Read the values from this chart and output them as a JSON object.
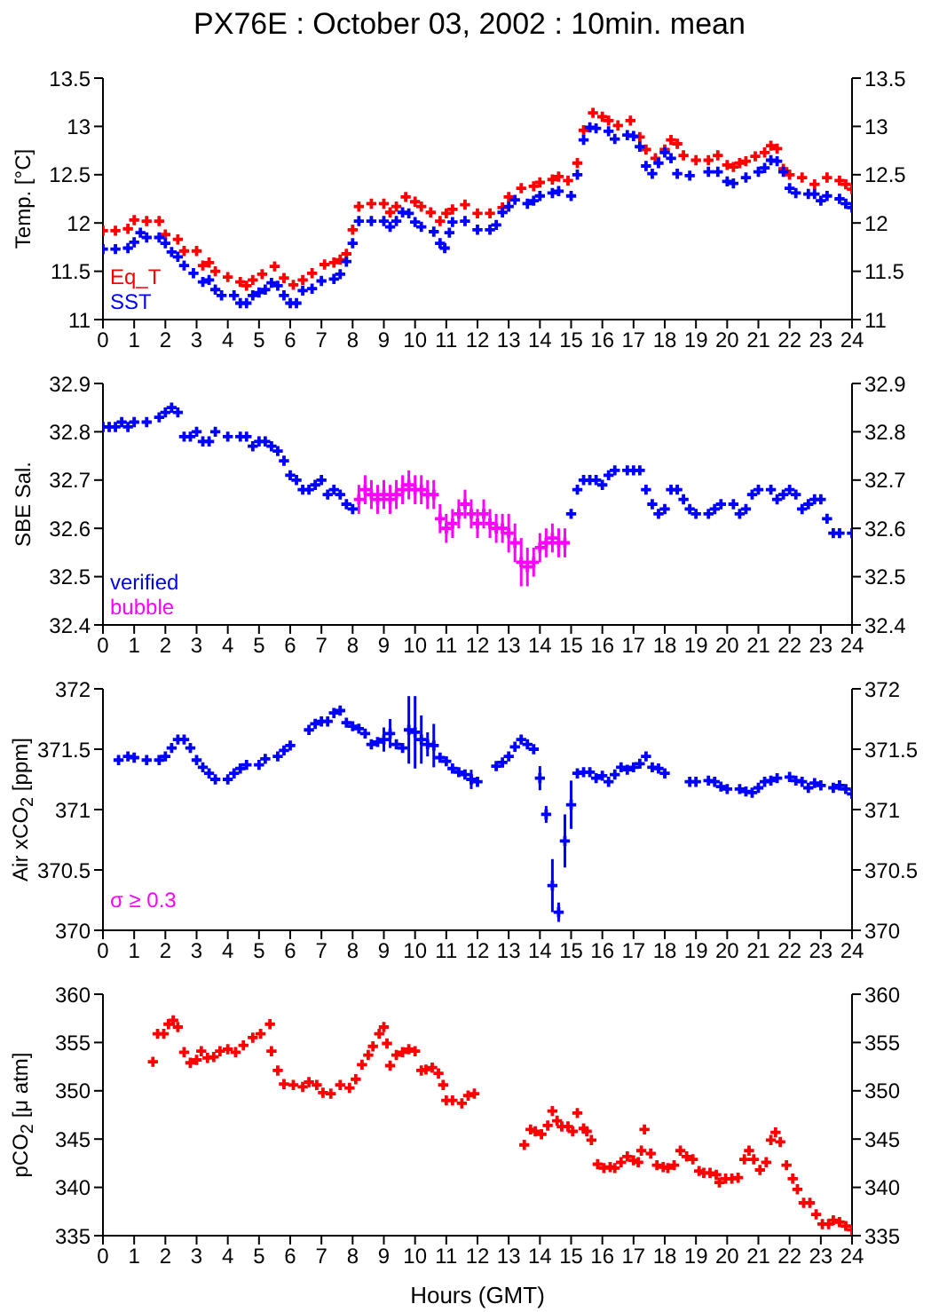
{
  "chart_data": [
    {
      "type": "scatter",
      "title": "PX76E : October 03, 2002 : 10min. mean",
      "ylabel": "Temp. [°C]",
      "marker": "cross",
      "legend": "bottom left",
      "xlim": [
        0,
        24
      ],
      "xticks": [
        0,
        1,
        2,
        3,
        4,
        5,
        6,
        7,
        8,
        9,
        10,
        11,
        12,
        13,
        14,
        15,
        16,
        17,
        18,
        19,
        20,
        21,
        22,
        23,
        24
      ],
      "ylim": [
        11,
        13.5
      ],
      "yticks": [
        11,
        11.5,
        12,
        12.5,
        13,
        13.5
      ],
      "y2lim": [
        11,
        13.5
      ],
      "y2ticks": [
        11,
        11.5,
        12,
        12.5,
        13,
        13.5
      ],
      "series": [
        {
          "name": "Eq_T",
          "color": "#ff0000",
          "x": [
            0,
            0.4,
            0.8,
            1.0,
            1.4,
            1.8,
            2.0,
            2.4,
            2.6,
            3.0,
            3.2,
            3.4,
            3.6,
            4.0,
            4.4,
            4.6,
            4.8,
            5.1,
            5.5,
            5.8,
            6.1,
            6.4,
            6.7,
            7.1,
            7.4,
            7.6,
            7.8,
            8.0,
            8.2,
            8.6,
            9.0,
            9.2,
            9.4,
            9.7,
            10.0,
            10.2,
            10.5,
            10.8,
            11.0,
            11.2,
            11.6,
            12.0,
            12.4,
            12.8,
            13.0,
            13.4,
            13.8,
            14.0,
            14.4,
            14.6,
            14.9,
            15.2,
            15.4,
            15.7,
            16.0,
            16.2,
            16.5,
            16.9,
            17.2,
            17.4,
            17.7,
            18.0,
            18.2,
            18.4,
            18.6,
            19.0,
            19.4,
            19.7,
            20.0,
            20.2,
            20.4,
            20.6,
            20.9,
            21.2,
            21.4,
            21.6,
            21.8,
            22.0,
            22.4,
            22.8,
            23.2,
            23.6,
            23.8,
            24.0
          ],
          "values": [
            11.92,
            11.92,
            11.94,
            12.03,
            12.02,
            12.02,
            11.88,
            11.83,
            11.71,
            11.71,
            11.56,
            11.59,
            11.5,
            11.44,
            11.39,
            11.35,
            11.41,
            11.47,
            11.55,
            11.43,
            11.36,
            11.41,
            11.48,
            11.57,
            11.59,
            11.62,
            11.68,
            11.93,
            12.17,
            12.2,
            12.2,
            12.11,
            12.17,
            12.27,
            12.22,
            12.17,
            12.11,
            12.02,
            12.1,
            12.14,
            12.19,
            12.1,
            12.1,
            12.16,
            12.27,
            12.36,
            12.38,
            12.42,
            12.45,
            12.48,
            12.44,
            12.62,
            12.96,
            13.14,
            13.1,
            13.06,
            13.01,
            13.06,
            12.89,
            12.76,
            12.67,
            12.76,
            12.86,
            12.82,
            12.7,
            12.65,
            12.65,
            12.7,
            12.6,
            12.58,
            12.62,
            12.64,
            12.69,
            12.73,
            12.8,
            12.77,
            12.56,
            12.5,
            12.47,
            12.4,
            12.47,
            12.44,
            12.4,
            12.35
          ]
        },
        {
          "name": "SST",
          "color": "#0000ff",
          "x": [
            0,
            0.4,
            0.8,
            1.0,
            1.2,
            1.4,
            1.8,
            2.0,
            2.2,
            2.4,
            2.6,
            2.9,
            3.2,
            3.4,
            3.6,
            3.8,
            4.2,
            4.4,
            4.6,
            4.8,
            5.0,
            5.2,
            5.4,
            5.6,
            5.8,
            6.0,
            6.2,
            6.4,
            6.7,
            7.0,
            7.4,
            7.6,
            7.8,
            8.0,
            8.2,
            8.6,
            9.0,
            9.2,
            9.4,
            9.6,
            9.8,
            10.0,
            10.2,
            10.6,
            10.8,
            10.95,
            11.1,
            11.2,
            11.6,
            12.0,
            12.4,
            12.6,
            12.8,
            13.0,
            13.2,
            13.6,
            13.8,
            14.0,
            14.4,
            14.6,
            15.0,
            15.2,
            15.4,
            15.6,
            15.8,
            16.2,
            16.4,
            16.8,
            17.0,
            17.2,
            17.4,
            17.6,
            17.8,
            18.0,
            18.2,
            18.4,
            18.8,
            19.4,
            19.7,
            20.0,
            20.2,
            20.6,
            21.0,
            21.2,
            21.4,
            21.6,
            21.8,
            22.0,
            22.2,
            22.6,
            22.8,
            23.0,
            23.2,
            23.6,
            23.8,
            24.0
          ],
          "values": [
            11.73,
            11.73,
            11.74,
            11.8,
            11.9,
            11.85,
            11.85,
            11.79,
            11.7,
            11.65,
            11.56,
            11.48,
            11.39,
            11.41,
            11.31,
            11.25,
            11.25,
            11.17,
            11.17,
            11.25,
            11.28,
            11.31,
            11.38,
            11.35,
            11.25,
            11.17,
            11.17,
            11.3,
            11.32,
            11.4,
            11.42,
            11.47,
            11.6,
            11.79,
            12.02,
            12.02,
            12.02,
            11.96,
            12.02,
            12.11,
            12.1,
            12.01,
            11.96,
            11.91,
            11.79,
            11.74,
            11.9,
            12.01,
            12.02,
            11.93,
            11.93,
            11.98,
            12.11,
            12.17,
            12.24,
            12.2,
            12.23,
            12.28,
            12.31,
            12.33,
            12.28,
            12.5,
            12.86,
            12.99,
            12.98,
            12.95,
            12.87,
            12.91,
            12.9,
            12.79,
            12.59,
            12.51,
            12.62,
            12.73,
            12.67,
            12.51,
            12.49,
            12.53,
            12.53,
            12.43,
            12.41,
            12.47,
            12.53,
            12.57,
            12.65,
            12.64,
            12.53,
            12.36,
            12.31,
            12.3,
            12.3,
            12.23,
            12.28,
            12.25,
            12.2,
            12.16
          ]
        }
      ]
    },
    {
      "type": "scatter",
      "ylabel": "SBE Sal.",
      "marker": "cross",
      "legend": "bottom left",
      "xlim": [
        0,
        24
      ],
      "xticks": [
        0,
        1,
        2,
        3,
        4,
        5,
        6,
        7,
        8,
        9,
        10,
        11,
        12,
        13,
        14,
        15,
        16,
        17,
        18,
        19,
        20,
        21,
        22,
        23,
        24
      ],
      "ylim": [
        32.4,
        32.9
      ],
      "yticks": [
        32.4,
        32.5,
        32.6,
        32.7,
        32.8,
        32.9
      ],
      "y2lim": [
        32.4,
        32.9
      ],
      "y2ticks": [
        32.4,
        32.5,
        32.6,
        32.7,
        32.8,
        32.9
      ],
      "series": [
        {
          "name": "verified",
          "color": "#0000ff",
          "x": [
            0,
            0.2,
            0.4,
            0.6,
            0.8,
            1.0,
            1.4,
            1.8,
            2.0,
            2.2,
            2.4,
            2.6,
            2.8,
            3.0,
            3.2,
            3.4,
            3.6,
            4.0,
            4.4,
            4.6,
            4.8,
            5.0,
            5.2,
            5.4,
            5.6,
            5.8,
            6.0,
            6.2,
            6.4,
            6.6,
            6.8,
            7.0,
            7.2,
            7.4,
            7.6,
            7.8,
            8.0,
            15.0,
            15.2,
            15.4,
            15.6,
            15.8,
            16.0,
            16.2,
            16.4,
            16.8,
            17.0,
            17.2,
            17.4,
            17.6,
            17.8,
            18.0,
            18.2,
            18.4,
            18.6,
            18.8,
            19.0,
            19.4,
            19.6,
            19.8,
            20.2,
            20.4,
            20.6,
            20.8,
            21.0,
            21.4,
            21.6,
            21.8,
            22.0,
            22.2,
            22.4,
            22.6,
            22.8,
            23.0,
            23.2,
            23.4,
            23.6,
            24.0
          ],
          "values": [
            32.81,
            32.81,
            32.81,
            32.82,
            32.81,
            32.82,
            32.82,
            32.83,
            32.84,
            32.85,
            32.84,
            32.79,
            32.79,
            32.8,
            32.78,
            32.78,
            32.8,
            32.79,
            32.79,
            32.79,
            32.77,
            32.78,
            32.78,
            32.77,
            32.76,
            32.74,
            32.71,
            32.7,
            32.68,
            32.68,
            32.69,
            32.7,
            32.67,
            32.68,
            32.67,
            32.65,
            32.64,
            32.63,
            32.68,
            32.7,
            32.7,
            32.7,
            32.69,
            32.71,
            32.72,
            32.72,
            32.72,
            32.72,
            32.68,
            32.65,
            32.63,
            32.64,
            32.68,
            32.68,
            32.66,
            32.64,
            32.63,
            32.63,
            32.64,
            32.65,
            32.65,
            32.63,
            32.64,
            32.67,
            32.68,
            32.68,
            32.66,
            32.67,
            32.68,
            32.67,
            32.64,
            32.65,
            32.66,
            32.66,
            32.62,
            32.59,
            32.59,
            32.59
          ]
        },
        {
          "name": "bubble",
          "color": "#ff00ff",
          "x": [
            8.2,
            8.4,
            8.6,
            8.8,
            9.0,
            9.2,
            9.4,
            9.6,
            9.8,
            10.0,
            10.2,
            10.4,
            10.6,
            10.8,
            11.0,
            11.2,
            11.4,
            11.6,
            11.8,
            12.0,
            12.2,
            12.4,
            12.6,
            12.8,
            13.0,
            13.2,
            13.4,
            13.6,
            13.8,
            14.0,
            14.2,
            14.4,
            14.6,
            14.8
          ],
          "values": [
            32.66,
            32.68,
            32.67,
            32.66,
            32.67,
            32.66,
            32.67,
            32.68,
            32.69,
            32.68,
            32.68,
            32.67,
            32.67,
            32.62,
            32.6,
            32.61,
            32.63,
            32.65,
            32.63,
            32.61,
            32.63,
            32.61,
            32.6,
            32.6,
            32.59,
            32.57,
            32.53,
            32.52,
            32.53,
            32.56,
            32.57,
            32.58,
            32.57,
            32.57
          ],
          "errors": [
            0.03,
            0.03,
            0.03,
            0.03,
            0.03,
            0.03,
            0.03,
            0.03,
            0.03,
            0.03,
            0.03,
            0.03,
            0.03,
            0.03,
            0.03,
            0.03,
            0.03,
            0.03,
            0.03,
            0.03,
            0.03,
            0.03,
            0.03,
            0.03,
            0.04,
            0.04,
            0.05,
            0.04,
            0.03,
            0.03,
            0.03,
            0.03,
            0.03,
            0.03
          ]
        }
      ]
    },
    {
      "type": "scatter",
      "ylabel": "Air xCO$_{2}$ [ppm]",
      "marker": "cross",
      "annotations": [
        "σ ≥ 0.3"
      ],
      "xlim": [
        0,
        24
      ],
      "xticks": [
        0,
        1,
        2,
        3,
        4,
        5,
        6,
        7,
        8,
        9,
        10,
        11,
        12,
        13,
        14,
        15,
        16,
        17,
        18,
        19,
        20,
        21,
        22,
        23,
        24
      ],
      "ylim": [
        370,
        372
      ],
      "yticks": [
        370,
        370.5,
        371,
        371.5,
        372
      ],
      "y2lim": [
        370,
        372
      ],
      "y2ticks": [
        370,
        370.5,
        371,
        371.5,
        372
      ],
      "series": [
        {
          "color": "#0000ff",
          "x": [
            0.5,
            0.8,
            1.0,
            1.4,
            1.8,
            2.0,
            2.2,
            2.4,
            2.6,
            2.8,
            3.0,
            3.2,
            3.4,
            3.6,
            4.0,
            4.2,
            4.4,
            4.6,
            5.0,
            5.2,
            5.6,
            5.8,
            6.0,
            6.6,
            6.8,
            7.0,
            7.2,
            7.4,
            7.6,
            7.8,
            8.0,
            8.2,
            8.4,
            8.6,
            8.8,
            9.0,
            9.2,
            9.4,
            9.6,
            9.8,
            10.0,
            10.2,
            10.4,
            10.6,
            10.8,
            11.0,
            11.2,
            11.4,
            11.6,
            11.8,
            12.0,
            12.6,
            12.8,
            13.0,
            13.2,
            13.4,
            13.6,
            13.8,
            14.0,
            14.2,
            14.4,
            14.6,
            14.8,
            15.0,
            15.2,
            15.4,
            15.6,
            15.8,
            16.0,
            16.2,
            16.4,
            16.6,
            16.8,
            17.0,
            17.2,
            17.4,
            17.6,
            17.8,
            18.0,
            18.8,
            19.0,
            19.4,
            19.6,
            19.8,
            20.0,
            20.4,
            20.6,
            20.8,
            21.0,
            21.2,
            21.4,
            21.6,
            22.0,
            22.2,
            22.4,
            22.6,
            22.8,
            23.0,
            23.4,
            23.6,
            23.8,
            24.0
          ],
          "values": [
            371.41,
            371.44,
            371.43,
            371.41,
            371.41,
            371.44,
            371.51,
            371.58,
            371.58,
            371.51,
            371.41,
            371.35,
            371.3,
            371.25,
            371.25,
            371.3,
            371.34,
            371.37,
            371.37,
            371.42,
            371.44,
            371.49,
            371.53,
            371.66,
            371.71,
            371.73,
            371.73,
            371.8,
            371.82,
            371.72,
            371.69,
            371.67,
            371.63,
            371.54,
            371.56,
            371.58,
            371.63,
            371.54,
            371.51,
            371.66,
            371.64,
            371.58,
            371.54,
            371.53,
            371.43,
            371.4,
            371.34,
            371.31,
            371.29,
            371.25,
            371.23,
            371.36,
            371.39,
            371.44,
            371.52,
            371.58,
            371.54,
            371.5,
            371.26,
            370.96,
            370.37,
            370.15,
            370.74,
            371.04,
            371.3,
            371.31,
            371.31,
            371.26,
            371.28,
            371.23,
            371.29,
            371.35,
            371.33,
            371.35,
            371.38,
            371.44,
            371.35,
            371.34,
            371.3,
            371.23,
            371.23,
            371.24,
            371.23,
            371.19,
            371.17,
            371.17,
            371.15,
            371.14,
            371.18,
            371.23,
            371.24,
            371.26,
            371.27,
            371.24,
            371.23,
            371.18,
            371.22,
            371.2,
            371.18,
            371.2,
            371.17,
            371.13
          ],
          "errors": [
            null,
            null,
            null,
            null,
            null,
            null,
            null,
            null,
            null,
            null,
            null,
            null,
            null,
            null,
            null,
            null,
            null,
            null,
            null,
            null,
            null,
            null,
            null,
            null,
            null,
            null,
            null,
            null,
            null,
            null,
            null,
            null,
            null,
            null,
            null,
            0.1,
            0.12,
            null,
            null,
            0.28,
            0.3,
            0.2,
            0.1,
            0.18,
            null,
            null,
            null,
            null,
            null,
            0.08,
            null,
            null,
            null,
            null,
            null,
            null,
            null,
            null,
            0.1,
            0.07,
            0.22,
            0.08,
            0.22,
            0.2,
            null,
            null,
            null,
            null,
            null,
            null,
            null,
            null,
            null,
            null,
            null,
            null,
            null,
            null,
            null,
            null,
            null,
            null,
            null,
            null,
            null,
            null,
            null,
            null,
            null,
            null,
            null,
            null,
            null,
            null,
            null,
            null,
            null,
            null,
            null,
            null,
            null,
            null
          ]
        }
      ]
    },
    {
      "type": "scatter",
      "ylabel": "pCO$_{2}$ [μ atm]",
      "xlabel": "Hours (GMT)",
      "marker": "cross",
      "xlim": [
        0,
        24
      ],
      "xticks": [
        0,
        1,
        2,
        3,
        4,
        5,
        6,
        7,
        8,
        9,
        10,
        11,
        12,
        13,
        14,
        15,
        16,
        17,
        18,
        19,
        20,
        21,
        22,
        23,
        24
      ],
      "ylim": [
        335,
        360
      ],
      "yticks": [
        335,
        340,
        345,
        350,
        355,
        360
      ],
      "y2lim": [
        335,
        360
      ],
      "y2ticks": [
        335,
        340,
        345,
        350,
        355,
        360
      ],
      "series": [
        {
          "color": "#ff0000",
          "x": [
            1.6,
            1.75,
            1.95,
            2.1,
            2.25,
            2.4,
            2.6,
            2.8,
            3.0,
            3.15,
            3.35,
            3.55,
            3.75,
            4.0,
            4.25,
            4.5,
            4.8,
            5.05,
            5.35,
            5.4,
            5.6,
            5.8,
            6.1,
            6.4,
            6.6,
            6.85,
            7.05,
            7.3,
            7.6,
            7.9,
            8.1,
            8.3,
            8.5,
            8.65,
            8.85,
            9.0,
            9.1,
            9.2,
            9.4,
            9.6,
            9.8,
            10.0,
            10.2,
            10.35,
            10.55,
            10.75,
            10.9,
            11.0,
            11.2,
            11.5,
            11.7,
            11.9,
            13.5,
            13.7,
            13.85,
            14.05,
            14.25,
            14.4,
            14.55,
            14.7,
            14.9,
            15.05,
            15.2,
            15.4,
            15.5,
            15.65,
            15.85,
            16.05,
            16.25,
            16.4,
            16.6,
            16.8,
            17.0,
            17.15,
            17.25,
            17.35,
            17.55,
            17.75,
            17.95,
            18.1,
            18.3,
            18.5,
            18.7,
            18.9,
            19.1,
            19.25,
            19.45,
            19.65,
            19.75,
            19.95,
            20.15,
            20.35,
            20.55,
            20.7,
            20.85,
            21.05,
            21.25,
            21.4,
            21.55,
            21.7,
            21.9,
            22.1,
            22.25,
            22.45,
            22.65,
            22.85,
            23.05,
            23.25,
            23.4,
            23.6,
            23.8,
            24.0
          ],
          "values": [
            353.0,
            355.9,
            355.9,
            356.9,
            357.3,
            356.6,
            354.0,
            352.9,
            353.2,
            354.1,
            353.4,
            353.5,
            354.1,
            354.3,
            354.0,
            354.7,
            355.5,
            355.9,
            356.9,
            354.1,
            352.1,
            350.7,
            350.6,
            350.4,
            350.9,
            350.6,
            349.8,
            349.7,
            350.6,
            350.3,
            351.2,
            352.7,
            353.7,
            354.6,
            355.9,
            356.6,
            354.9,
            352.6,
            353.7,
            354.0,
            354.3,
            354.1,
            352.1,
            352.2,
            352.4,
            351.8,
            350.6,
            349.0,
            349.0,
            348.7,
            349.5,
            349.7,
            344.4,
            346.0,
            345.8,
            345.5,
            346.4,
            347.9,
            346.9,
            346.3,
            346.3,
            345.8,
            347.7,
            346.1,
            345.8,
            344.9,
            342.4,
            342.0,
            342.1,
            342.0,
            342.6,
            343.2,
            342.8,
            342.6,
            343.8,
            346.0,
            343.5,
            342.3,
            342.1,
            342.0,
            342.3,
            343.8,
            343.2,
            342.9,
            341.7,
            341.5,
            341.5,
            341.3,
            340.5,
            340.9,
            340.9,
            341.0,
            342.9,
            343.8,
            342.9,
            341.8,
            342.6,
            344.9,
            345.7,
            344.7,
            342.3,
            340.9,
            339.8,
            338.4,
            338.4,
            337.2,
            336.2,
            336.2,
            336.6,
            336.4,
            336.0,
            335.6
          ]
        }
      ]
    }
  ]
}
